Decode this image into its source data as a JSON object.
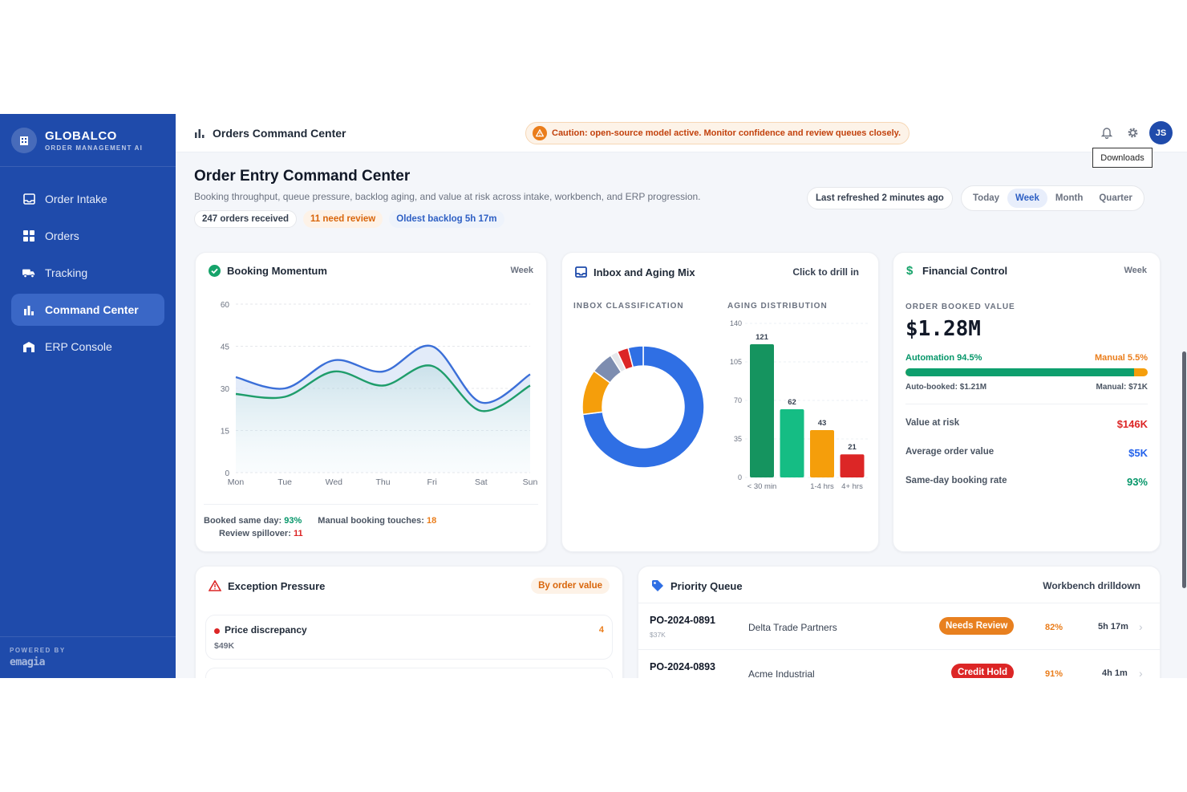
{
  "brand": {
    "name": "GLOBALCO",
    "subtitle": "ORDER MANAGEMENT AI",
    "powered_label": "POWERED BY",
    "powered_logo": "emagia"
  },
  "nav": [
    {
      "label": "Order Intake",
      "icon": "inbox-icon"
    },
    {
      "label": "Orders",
      "icon": "grid-icon"
    },
    {
      "label": "Tracking",
      "icon": "truck-icon"
    },
    {
      "label": "Command Center",
      "icon": "bar-chart-icon",
      "active": true
    },
    {
      "label": "ERP Console",
      "icon": "building-icon"
    }
  ],
  "topbar": {
    "title": "Orders Command Center",
    "caution": "Caution: open-source model active. Monitor confidence and review queues closely.",
    "avatar": "JS",
    "tooltip": "Downloads"
  },
  "header": {
    "title": "Order Entry Command Center",
    "subtitle": "Booking throughput, queue pressure, backlog aging, and value at risk across intake, workbench, and ERP progression.",
    "chips": [
      "247 orders received",
      "11 need review",
      "Oldest backlog 5h 17m"
    ],
    "refreshed": "Last refreshed 2 minutes ago",
    "periods": [
      "Today",
      "Week",
      "Month",
      "Quarter"
    ],
    "active_period": "Week"
  },
  "booking": {
    "title": "Booking Momentum",
    "tag": "Week",
    "footer": {
      "same_day_label": "Booked same day:",
      "same_day_value": "93%",
      "manual_label": "Manual booking touches:",
      "manual_value": "18",
      "spillover_label": "Review spillover:",
      "spillover_value": "11"
    }
  },
  "inbox": {
    "title": "Inbox and Aging Mix",
    "tag": "Click to drill in",
    "classification_label": "INBOX CLASSIFICATION",
    "aging_label": "AGING DISTRIBUTION"
  },
  "financial": {
    "title": "Financial Control",
    "tag": "Week",
    "booked_label": "ORDER BOOKED VALUE",
    "booked_value": "$1.28M",
    "automation_label": "Automation 94.5%",
    "manual_label": "Manual 5.5%",
    "automation_share": 0.945,
    "auto_booked": "Auto-booked: $1.21M",
    "manual_booked": "Manual: $71K",
    "rows": [
      {
        "label": "Value at risk",
        "value": "$146K",
        "color": "#dc2626"
      },
      {
        "label": "Average order value",
        "value": "$5K",
        "color": "#2563eb"
      },
      {
        "label": "Same-day booking rate",
        "value": "93%",
        "color": "#059669"
      }
    ]
  },
  "exceptions": {
    "title": "Exception Pressure",
    "tag": "By order value",
    "items": [
      {
        "name": "Price discrepancy",
        "value": "$49K",
        "count": "4"
      }
    ]
  },
  "priority": {
    "title": "Priority Queue",
    "tag": "Workbench drilldown",
    "rows": [
      {
        "po": "PO-2024-0891",
        "amount": "$37K",
        "customer": "Delta Trade Partners",
        "status": "Needs Review",
        "status_color": "#e8801f",
        "confidence": "82%",
        "age": "5h 17m"
      },
      {
        "po": "PO-2024-0893",
        "amount": "",
        "customer": "Acme Industrial",
        "status": "Credit Hold",
        "status_color": "#dc2626",
        "confidence": "91%",
        "age": "4h 1m"
      }
    ]
  },
  "chart_data": [
    {
      "type": "area",
      "title": "Booking Momentum",
      "categories": [
        "Mon",
        "Tue",
        "Wed",
        "Thu",
        "Fri",
        "Sat",
        "Sun"
      ],
      "ylim": [
        0,
        60
      ],
      "yticks": [
        0,
        15,
        30,
        45,
        60
      ],
      "series": [
        {
          "color": "#3b6fd8",
          "values": [
            34,
            30,
            40,
            36,
            45,
            25,
            35
          ]
        },
        {
          "color": "#1f9d6b",
          "values": [
            28,
            27,
            36,
            31,
            38,
            22,
            31
          ]
        }
      ]
    },
    {
      "type": "pie",
      "title": "INBOX CLASSIFICATION",
      "donut": true,
      "slices": [
        {
          "value": 73,
          "color": "#2f6fe4"
        },
        {
          "value": 12,
          "color": "#f59e0b"
        },
        {
          "value": 6,
          "color": "#7d8db0"
        },
        {
          "value": 2,
          "color": "#e5e7eb"
        },
        {
          "value": 3,
          "color": "#dc2626"
        },
        {
          "value": 4,
          "color": "#2f6fe4"
        }
      ]
    },
    {
      "type": "bar",
      "title": "AGING DISTRIBUTION",
      "categories": [
        "< 30 min",
        "",
        "1-4 hrs",
        "4+ hrs"
      ],
      "values": [
        121,
        62,
        43,
        21
      ],
      "colors": [
        "#15945f",
        "#15bd84",
        "#f59e0b",
        "#dc2626"
      ],
      "ylim": [
        0,
        140
      ],
      "yticks": [
        0,
        35,
        70,
        105,
        140
      ]
    }
  ]
}
